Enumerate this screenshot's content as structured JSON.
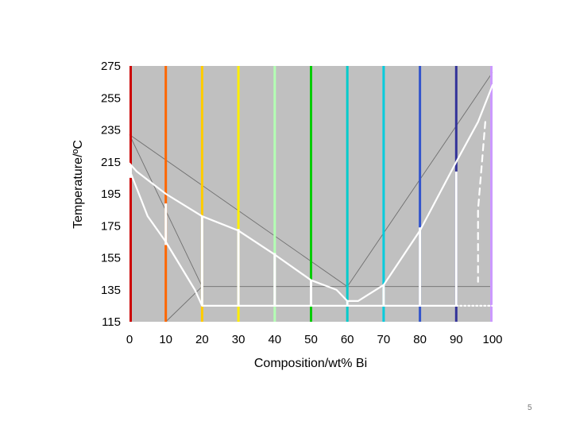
{
  "chart_data": {
    "type": "line",
    "title": "",
    "xlabel": "Composition/wt% Bi",
    "ylabel": "Temperature/ºC",
    "xlim": [
      0,
      100
    ],
    "ylim": [
      115,
      275
    ],
    "x_ticks": [
      "0",
      "10",
      "20",
      "30",
      "40",
      "50",
      "60",
      "70",
      "80",
      "90",
      "100"
    ],
    "y_ticks": [
      "275",
      "255",
      "235",
      "215",
      "195",
      "175",
      "155",
      "135",
      "115"
    ],
    "grid": false,
    "background_color": "#c0c0c0",
    "phase_lines": [
      {
        "x": [
          0,
          60
        ],
        "y": [
          232,
          137
        ]
      },
      {
        "x": [
          60,
          100
        ],
        "y": [
          137,
          271
        ]
      },
      {
        "x": [
          0,
          20
        ],
        "y": [
          232,
          137
        ]
      },
      {
        "x": [
          20,
          100
        ],
        "y": [
          137,
          137
        ]
      },
      {
        "x": [
          10,
          20
        ],
        "y": [
          115,
          137
        ]
      }
    ],
    "cooling_curves": [
      {
        "composition": 0,
        "color": "#cc0000",
        "white_range": [
          205,
          213
        ]
      },
      {
        "composition": 10,
        "color": "#ff6600",
        "white_range": [
          163,
          189
        ]
      },
      {
        "composition": 20,
        "color": "#ffcc00",
        "white_range": [
          125,
          181
        ]
      },
      {
        "composition": 30,
        "color": "#ffee00",
        "white_range": [
          125,
          173
        ]
      },
      {
        "composition": 40,
        "color": "#b3ffb3",
        "white_range": [
          125,
          158
        ]
      },
      {
        "composition": 50,
        "color": "#00cc00",
        "white_range": [
          125,
          141
        ]
      },
      {
        "composition": 60,
        "color": "#00cccc",
        "white_range": [
          125,
          128
        ]
      },
      {
        "composition": 70,
        "color": "#00ccdd",
        "white_range": [
          125,
          138
        ]
      },
      {
        "composition": 80,
        "color": "#3355cc",
        "white_range": [
          125,
          174
        ]
      },
      {
        "composition": 90,
        "color": "#333399",
        "white_range": [
          125,
          209
        ]
      },
      {
        "composition": 100,
        "color": "#cc99ff",
        "white_range": null
      }
    ],
    "traced_curves": [
      {
        "name": "liquidus-left",
        "x": [
          0,
          2,
          10,
          20,
          30,
          40,
          50,
          57,
          60
        ],
        "y": [
          214,
          209,
          195,
          181,
          172,
          157,
          141,
          135,
          128
        ]
      },
      {
        "name": "liquidus-right",
        "x": [
          60,
          63,
          70,
          80,
          90,
          96,
          100
        ],
        "y": [
          128,
          128,
          138,
          172,
          215,
          240,
          263
        ]
      },
      {
        "name": "solidus-left",
        "x": [
          0,
          5,
          10,
          18,
          20
        ],
        "y": [
          210,
          181,
          165,
          135,
          125
        ]
      },
      {
        "name": "eutectic",
        "x": [
          20,
          90
        ],
        "y": [
          125,
          125
        ]
      },
      {
        "name": "eutectic-dotted",
        "x": [
          90,
          100
        ],
        "y": [
          125,
          125
        ],
        "dashed": true
      },
      {
        "name": "solvus-right-dashed",
        "x": [
          98,
          96,
          96
        ],
        "y": [
          240,
          185,
          140
        ],
        "dashed": true
      }
    ]
  },
  "page_number": "5"
}
